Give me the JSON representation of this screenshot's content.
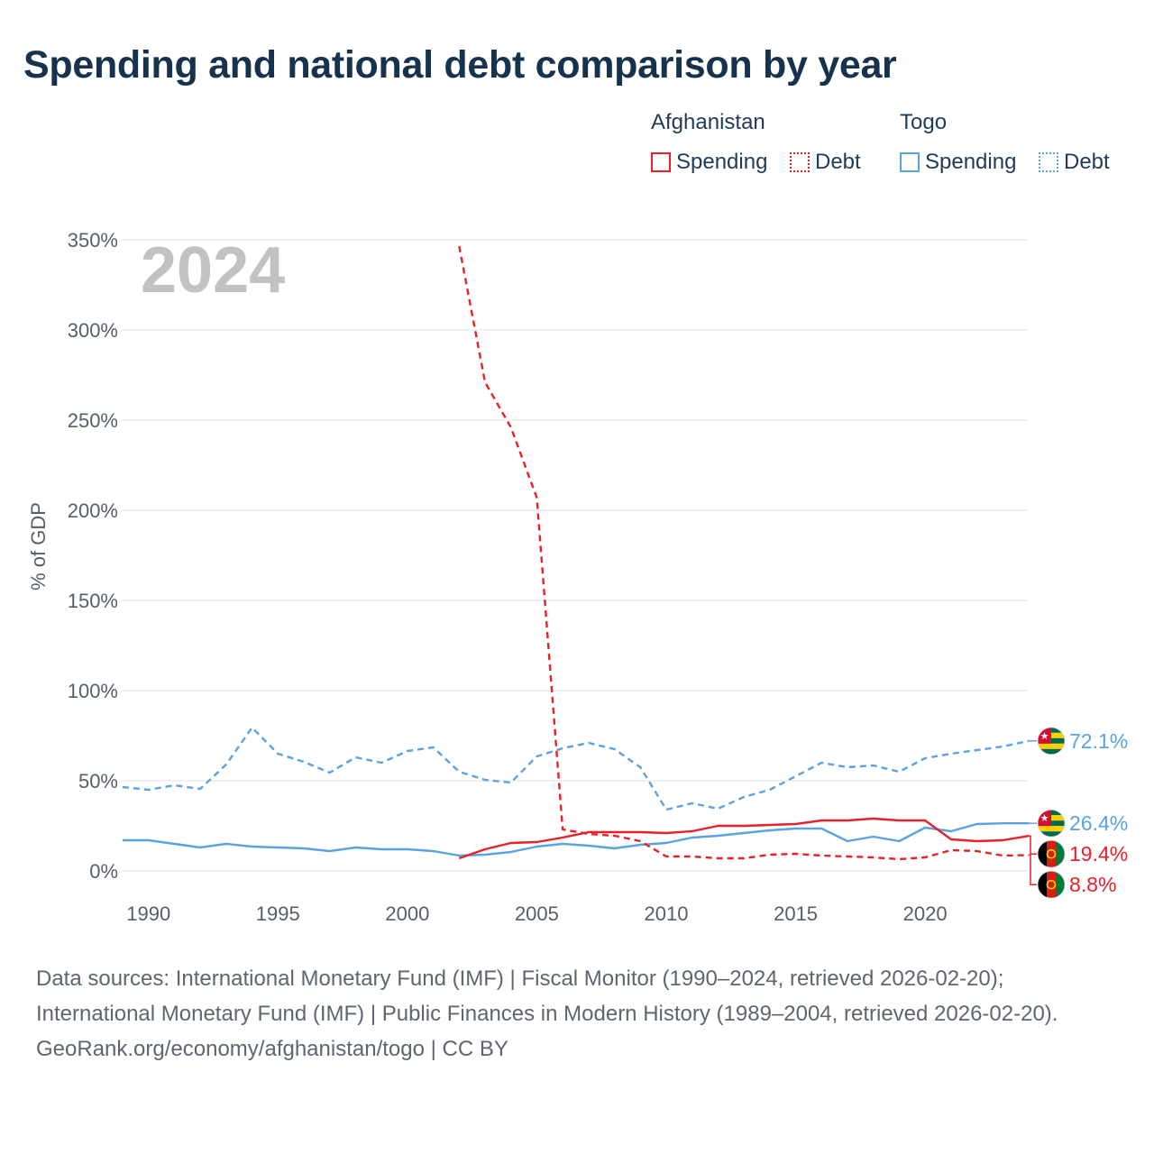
{
  "title": "Spending and national debt comparison by year",
  "legend": {
    "groups": [
      {
        "country": "Afghanistan",
        "items": [
          {
            "label": "Spending"
          },
          {
            "label": "Debt"
          }
        ]
      },
      {
        "country": "Togo",
        "items": [
          {
            "label": "Spending"
          },
          {
            "label": "Debt"
          }
        ]
      }
    ]
  },
  "colors": {
    "afghanistan": "#e8202a",
    "togo": "#5aa3e0",
    "grid": "#e6e6e6",
    "watermark": "#c2c2c2"
  },
  "chart_data": {
    "type": "line",
    "year_watermark": "2024",
    "ylabel": "% of GDP",
    "xlim": [
      1989,
      2024
    ],
    "ylim": [
      0,
      350
    ],
    "x_ticks": [
      1990,
      1995,
      2000,
      2005,
      2010,
      2015,
      2020
    ],
    "y_ticks": [
      0,
      50,
      100,
      150,
      200,
      250,
      300,
      350
    ],
    "y_tick_labels": [
      "0%",
      "50%",
      "100%",
      "150%",
      "200%",
      "250%",
      "300%",
      "350%"
    ],
    "series": [
      {
        "name": "Togo Debt",
        "country": "Togo",
        "measure": "Debt",
        "style": "dashed",
        "color": "#5aa3e0",
        "x": [
          1989,
          1990,
          1991,
          1992,
          1993,
          1994,
          1995,
          1996,
          1997,
          1998,
          1999,
          2000,
          2001,
          2002,
          2003,
          2004,
          2005,
          2006,
          2007,
          2008,
          2009,
          2010,
          2011,
          2012,
          2013,
          2014,
          2015,
          2016,
          2017,
          2018,
          2019,
          2020,
          2021,
          2022,
          2023,
          2024
        ],
        "values": [
          46.5,
          45,
          47.5,
          45.5,
          59,
          79.5,
          65,
          60.5,
          54.5,
          63,
          60,
          66.5,
          68.5,
          55,
          50.5,
          49,
          63.5,
          68,
          71,
          67.5,
          57.5,
          34,
          37.5,
          34.5,
          41,
          45,
          52.5,
          60,
          57.5,
          58.5,
          55,
          62.5,
          65,
          67,
          69,
          72.1
        ],
        "end_label": "72.1%"
      },
      {
        "name": "Togo Spending",
        "country": "Togo",
        "measure": "Spending",
        "style": "solid",
        "color": "#5aa3e0",
        "x": [
          1989,
          1990,
          1991,
          1992,
          1993,
          1994,
          1995,
          1996,
          1997,
          1998,
          1999,
          2000,
          2001,
          2002,
          2003,
          2004,
          2005,
          2006,
          2007,
          2008,
          2009,
          2010,
          2011,
          2012,
          2013,
          2014,
          2015,
          2016,
          2017,
          2018,
          2019,
          2020,
          2021,
          2022,
          2023,
          2024
        ],
        "values": [
          17,
          17,
          15,
          13,
          15,
          13.5,
          13,
          12.5,
          11,
          13,
          12,
          12,
          11,
          8.5,
          9,
          10.5,
          13.5,
          15,
          14,
          12.5,
          14.5,
          15.5,
          18.5,
          19.5,
          21,
          22.5,
          23.5,
          23.5,
          16.5,
          19,
          16.5,
          24,
          22,
          26,
          26.4,
          26.4
        ],
        "end_label": "26.4%"
      },
      {
        "name": "Afghanistan Spending",
        "country": "Afghanistan",
        "measure": "Spending",
        "style": "solid",
        "color": "#e8202a",
        "x": [
          2002,
          2003,
          2004,
          2005,
          2006,
          2007,
          2008,
          2009,
          2010,
          2011,
          2012,
          2013,
          2014,
          2015,
          2016,
          2017,
          2018,
          2019,
          2020,
          2021,
          2022,
          2023,
          2024
        ],
        "values": [
          7,
          12,
          15.5,
          16,
          18.5,
          21.5,
          21.5,
          21.5,
          21,
          22,
          25,
          25,
          25.5,
          26,
          28,
          28,
          29,
          28,
          28,
          17.5,
          16.5,
          17,
          19.4
        ],
        "end_label": "19.4%"
      },
      {
        "name": "Afghanistan Debt",
        "country": "Afghanistan",
        "measure": "Debt",
        "style": "dashed",
        "color": "#e8202a",
        "x": [
          2002,
          2003,
          2004,
          2005,
          2006,
          2007,
          2008,
          2009,
          2010,
          2011,
          2012,
          2013,
          2014,
          2015,
          2016,
          2017,
          2018,
          2019,
          2020,
          2021,
          2022,
          2023,
          2024
        ],
        "values": [
          346.5,
          271,
          246,
          207,
          23,
          20.5,
          19.5,
          16.5,
          8,
          8,
          7,
          7,
          9,
          9.5,
          8.5,
          8,
          7.5,
          6.5,
          7.5,
          11.5,
          11,
          8.5,
          8.8
        ],
        "end_label": "8.8%"
      }
    ]
  },
  "footer": {
    "sources": "Data sources: International Monetary Fund (IMF) | Fiscal Monitor (1990–2024, retrieved 2026-02-20); International Monetary Fund (IMF) | Public Finances in Modern History (1989–2004, retrieved 2026-02-20).",
    "credit": "GeoRank.org/economy/afghanistan/togo | CC BY"
  }
}
